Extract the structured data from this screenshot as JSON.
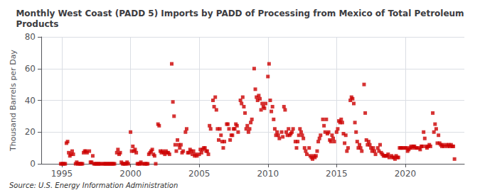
{
  "chart_data": {
    "type": "scatter",
    "title": "Monthly West Coast (PADD 5) Imports by PADD of Processing from Mexico of Total Petroleum\nProducts",
    "ylabel": "Thousand Barrels per Day",
    "source": "Source: U.S. Energy Information Administration",
    "color": "#cc0000",
    "marker": "square",
    "grid": true,
    "xlim": [
      1993.5,
      2024.3
    ],
    "xticks": [
      1995,
      2000,
      2005,
      2010,
      2015,
      2020
    ],
    "ylim": [
      0,
      80
    ],
    "yticks": [
      0,
      20,
      40,
      60,
      80
    ],
    "x": [
      1994.917,
      1995.0,
      1995.083,
      1995.167,
      1995.25,
      1995.333,
      1995.417,
      1995.5,
      1995.583,
      1995.667,
      1995.75,
      1995.833,
      1996.0,
      1996.083,
      1996.167,
      1996.25,
      1996.333,
      1996.417,
      1996.5,
      1996.583,
      1996.667,
      1996.75,
      1996.833,
      1997.0,
      1997.083,
      1997.167,
      1997.25,
      1997.333,
      1997.417,
      1997.5,
      1997.583,
      1997.667,
      1997.75,
      1997.833,
      1998.0,
      1998.083,
      1998.167,
      1998.25,
      1998.333,
      1998.417,
      1998.5,
      1998.583,
      1998.667,
      1998.75,
      1998.833,
      1999.0,
      1999.083,
      1999.167,
      1999.25,
      1999.333,
      1999.417,
      1999.5,
      1999.583,
      1999.667,
      1999.75,
      1999.833,
      2000.0,
      2000.083,
      2000.167,
      2000.25,
      2000.333,
      2000.417,
      2000.5,
      2000.583,
      2000.667,
      2000.75,
      2000.833,
      2001.0,
      2001.083,
      2001.167,
      2001.25,
      2001.333,
      2001.417,
      2001.5,
      2001.583,
      2001.667,
      2001.75,
      2001.833,
      2002.0,
      2002.083,
      2002.167,
      2002.25,
      2002.333,
      2002.417,
      2002.5,
      2002.583,
      2002.667,
      2002.75,
      2002.833,
      2003.0,
      2003.083,
      2003.167,
      2003.25,
      2003.333,
      2003.417,
      2003.5,
      2003.583,
      2003.667,
      2003.75,
      2003.833,
      2004.0,
      2004.083,
      2004.167,
      2004.25,
      2004.333,
      2004.417,
      2004.5,
      2004.583,
      2004.667,
      2004.75,
      2004.833,
      2005.0,
      2005.083,
      2005.167,
      2005.25,
      2005.333,
      2005.417,
      2005.5,
      2005.583,
      2005.667,
      2005.75,
      2005.833,
      2006.0,
      2006.083,
      2006.167,
      2006.25,
      2006.333,
      2006.417,
      2006.5,
      2006.583,
      2006.667,
      2006.75,
      2006.833,
      2007.0,
      2007.083,
      2007.167,
      2007.25,
      2007.333,
      2007.417,
      2007.5,
      2007.583,
      2007.667,
      2007.75,
      2007.833,
      2008.0,
      2008.083,
      2008.167,
      2008.25,
      2008.333,
      2008.417,
      2008.5,
      2008.583,
      2008.667,
      2008.75,
      2008.833,
      2009.0,
      2009.083,
      2009.167,
      2009.25,
      2009.333,
      2009.417,
      2009.5,
      2009.583,
      2009.667,
      2009.75,
      2009.833,
      2010.0,
      2010.083,
      2010.167,
      2010.25,
      2010.333,
      2010.417,
      2010.5,
      2010.583,
      2010.667,
      2010.75,
      2010.833,
      2011.0,
      2011.083,
      2011.167,
      2011.25,
      2011.333,
      2011.417,
      2011.5,
      2011.583,
      2011.667,
      2011.75,
      2011.833,
      2012.0,
      2012.083,
      2012.167,
      2012.25,
      2012.333,
      2012.417,
      2012.5,
      2012.583,
      2012.667,
      2012.75,
      2012.833,
      2013.0,
      2013.083,
      2013.167,
      2013.25,
      2013.333,
      2013.417,
      2013.5,
      2013.583,
      2013.667,
      2013.75,
      2013.833,
      2014.0,
      2014.083,
      2014.167,
      2014.25,
      2014.333,
      2014.417,
      2014.5,
      2014.583,
      2014.667,
      2014.75,
      2014.833,
      2015.0,
      2015.083,
      2015.167,
      2015.25,
      2015.333,
      2015.417,
      2015.5,
      2015.583,
      2015.667,
      2015.75,
      2015.833,
      2016.0,
      2016.083,
      2016.167,
      2016.25,
      2016.333,
      2016.417,
      2016.5,
      2016.583,
      2016.667,
      2016.75,
      2016.833,
      2017.0,
      2017.083,
      2017.167,
      2017.25,
      2017.333,
      2017.417,
      2017.5,
      2017.583,
      2017.667,
      2017.75,
      2017.833,
      2018.0,
      2018.083,
      2018.167,
      2018.25,
      2018.333,
      2018.417,
      2018.5,
      2018.583,
      2018.667,
      2018.75,
      2018.833,
      2019.0,
      2019.083,
      2019.167,
      2019.25,
      2019.333,
      2019.417,
      2019.5,
      2019.583,
      2019.667,
      2019.75,
      2019.833,
      2020.0,
      2020.083,
      2020.167,
      2020.25,
      2020.333,
      2020.417,
      2020.5,
      2020.583,
      2020.667,
      2020.75,
      2020.833,
      2021.0,
      2021.083,
      2021.167,
      2021.25,
      2021.333,
      2021.417,
      2021.5,
      2021.583,
      2021.667,
      2021.75,
      2021.833,
      2022.0,
      2022.083,
      2022.167,
      2022.25,
      2022.333,
      2022.417,
      2022.5,
      2022.583,
      2022.667,
      2022.75,
      2022.833,
      2023.0,
      2023.083,
      2023.167,
      2023.25,
      2023.333,
      2023.417,
      2023.5,
      2023.583
    ],
    "values": [
      0,
      0,
      0,
      0,
      0,
      13,
      14,
      7,
      5,
      6,
      8,
      6,
      0,
      1,
      0,
      0,
      0,
      0,
      0,
      7,
      8,
      8,
      7,
      8,
      1,
      1,
      5,
      0,
      0,
      0,
      0,
      0,
      0,
      0,
      0,
      0,
      0,
      0,
      0,
      0,
      0,
      0,
      0,
      0,
      0,
      7,
      9,
      6,
      7,
      1,
      0,
      0,
      0,
      0,
      1,
      0,
      20,
      8,
      11,
      8,
      9,
      7,
      0,
      0,
      0,
      1,
      0,
      0,
      0,
      0,
      0,
      6,
      7,
      8,
      9,
      6,
      5,
      0,
      25,
      24,
      8,
      7,
      8,
      7,
      6,
      8,
      7,
      7,
      6,
      63,
      39,
      30,
      12,
      8,
      15,
      12,
      10,
      12,
      7,
      8,
      20,
      22,
      7,
      7,
      9,
      8,
      6,
      8,
      5,
      6,
      5,
      6,
      9,
      7,
      9,
      10,
      10,
      8,
      8,
      6,
      24,
      22,
      40,
      36,
      42,
      34,
      22,
      15,
      22,
      18,
      14,
      10,
      14,
      25,
      25,
      22,
      15,
      18,
      18,
      22,
      22,
      25,
      24,
      20,
      40,
      38,
      42,
      36,
      32,
      22,
      24,
      20,
      22,
      26,
      28,
      60,
      47,
      42,
      40,
      43,
      41,
      34,
      38,
      36,
      35,
      38,
      55,
      63,
      40,
      33,
      36,
      28,
      22,
      18,
      20,
      18,
      16,
      20,
      17,
      36,
      34,
      20,
      18,
      22,
      18,
      19,
      20,
      22,
      14,
      10,
      14,
      18,
      22,
      20,
      18,
      16,
      10,
      8,
      6,
      10,
      5,
      4,
      3,
      5,
      4,
      5,
      8,
      14,
      16,
      18,
      28,
      24,
      20,
      28,
      19,
      20,
      15,
      14,
      18,
      16,
      14,
      20,
      22,
      27,
      26,
      28,
      26,
      19,
      13,
      18,
      8,
      10,
      40,
      42,
      41,
      38,
      26,
      20,
      14,
      10,
      12,
      10,
      8,
      50,
      32,
      15,
      12,
      14,
      12,
      10,
      8,
      10,
      8,
      6,
      10,
      8,
      12,
      7,
      6,
      5,
      5,
      5,
      5,
      6,
      4,
      5,
      4,
      4,
      3,
      5,
      4,
      4,
      10,
      10,
      10,
      10,
      10,
      10,
      8,
      9,
      10,
      11,
      10,
      11,
      11,
      10,
      10,
      10,
      9,
      11,
      11,
      20,
      16,
      11,
      10,
      11,
      12,
      11,
      32,
      20,
      25,
      22,
      13,
      18,
      13,
      12,
      11,
      12,
      11,
      12,
      11,
      12,
      11,
      12,
      11,
      11,
      3
    ]
  }
}
